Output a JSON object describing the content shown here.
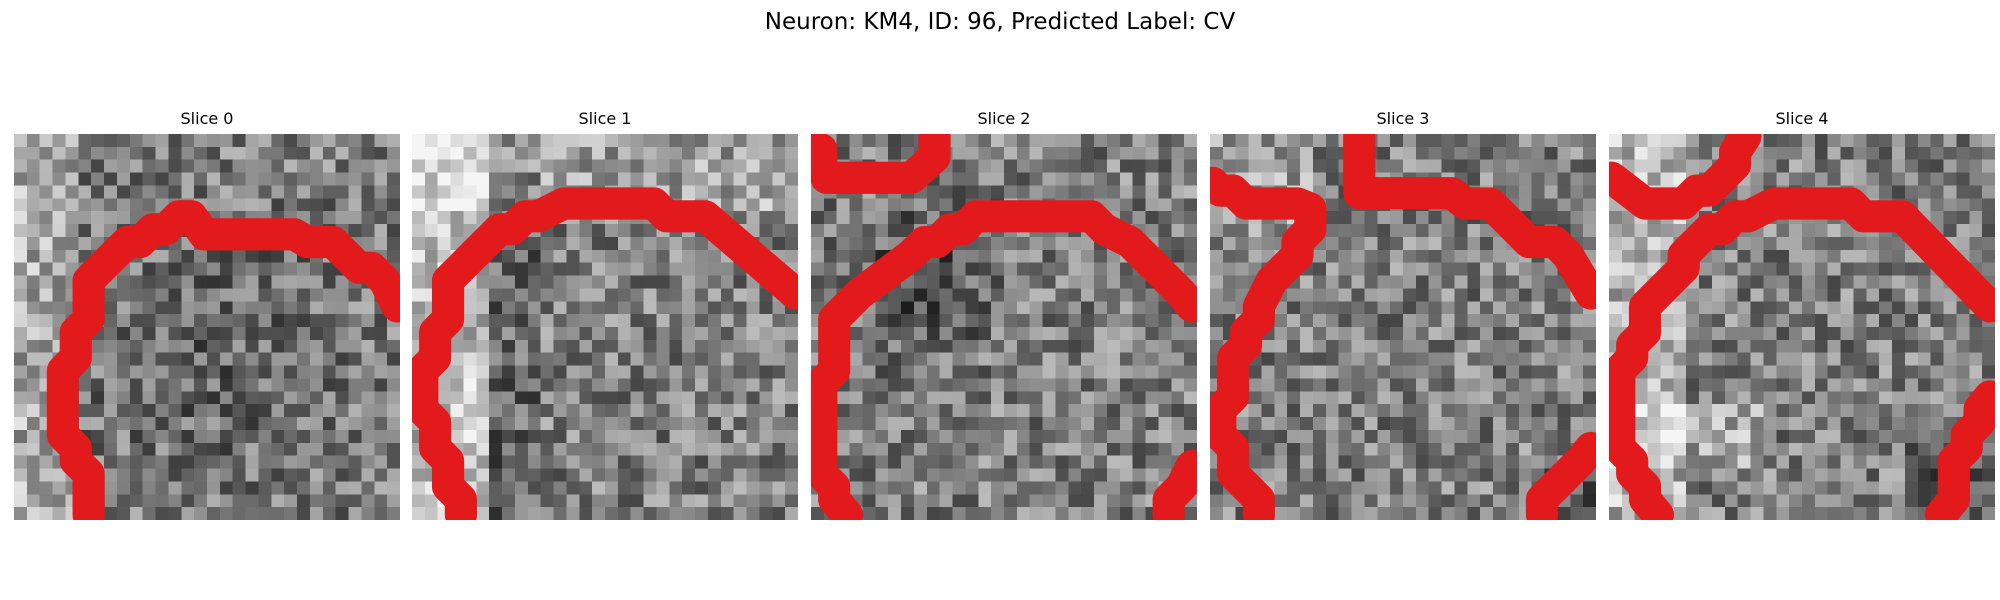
{
  "figure": {
    "title": "Neuron: KM4, ID: 96, Predicted Label: CV"
  },
  "colors": {
    "contour": "#e31a1c",
    "background": "#ffffff"
  },
  "slices": [
    {
      "title": "Slice 0"
    },
    {
      "title": "Slice 1"
    },
    {
      "title": "Slice 2"
    },
    {
      "title": "Slice 3"
    },
    {
      "title": "Slice 4"
    }
  ]
}
